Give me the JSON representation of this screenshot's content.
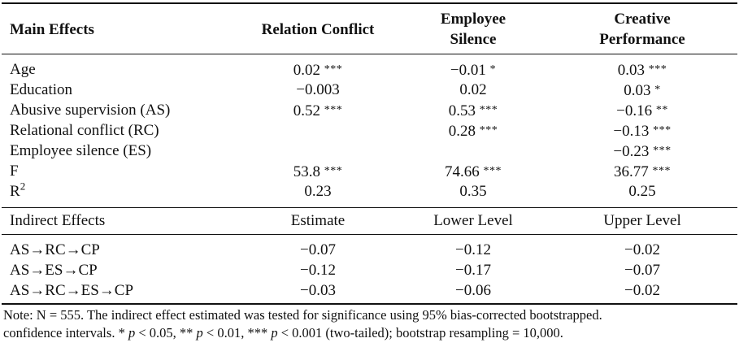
{
  "header": {
    "col0": "Main Effects",
    "col1": "Relation Conflict",
    "col2_line1": "Employee",
    "col2_line2": "Silence",
    "col3_line1": "Creative",
    "col3_line2": "Performance"
  },
  "main_rows": [
    {
      "label": "Age",
      "c1": "0.02",
      "c1s": "***",
      "c2": "−0.01",
      "c2s": "*",
      "c3": "0.03",
      "c3s": "***"
    },
    {
      "label": "Education",
      "c1": "−0.003",
      "c1s": "",
      "c2": "0.02",
      "c2s": "",
      "c3": "0.03",
      "c3s": "*"
    },
    {
      "label": "Abusive supervision (AS)",
      "c1": "0.52",
      "c1s": "***",
      "c2": "0.53",
      "c2s": "***",
      "c3": "−0.16",
      "c3s": "**"
    },
    {
      "label": "Relational conflict (RC)",
      "c1": "",
      "c1s": "",
      "c2": "0.28",
      "c2s": "***",
      "c3": "−0.13",
      "c3s": "***"
    },
    {
      "label": "Employee silence (ES)",
      "c1": "",
      "c1s": "",
      "c2": "",
      "c2s": "",
      "c3": "−0.23",
      "c3s": "***"
    },
    {
      "label": "F",
      "c1": "53.8",
      "c1s": "***",
      "c2": "74.66",
      "c2s": "***",
      "c3": "36.77",
      "c3s": "***"
    }
  ],
  "r2_row": {
    "label": "R",
    "sup": "2",
    "c1": "0.23",
    "c2": "0.35",
    "c3": "0.25"
  },
  "indirect_header": {
    "col0": "Indirect Effects",
    "col1": "Estimate",
    "col2": "Lower Level",
    "col3": "Upper Level"
  },
  "indirect_rows": [
    {
      "label": "AS→RC→CP",
      "c1": "−0.07",
      "c2": "−0.12",
      "c3": "−0.02"
    },
    {
      "label": "AS→ES→CP",
      "c1": "−0.12",
      "c2": "−0.17",
      "c3": "−0.07"
    },
    {
      "label": "AS→RC→ES→CP",
      "c1": "−0.03",
      "c2": "−0.06",
      "c3": "−0.02"
    }
  ],
  "note": {
    "line1": "Note: N = 555. The indirect effect estimated was tested for significance using 95% bias-corrected bootstrapped.",
    "line2_a": "confidence intervals. * ",
    "p1": "p",
    "line2_b": " < 0.05, ** ",
    "p2": "p",
    "line2_c": " < 0.01, *** ",
    "p3": "p",
    "line2_d": " < 0.001 (two-tailed); bootstrap resampling = 10,000."
  }
}
